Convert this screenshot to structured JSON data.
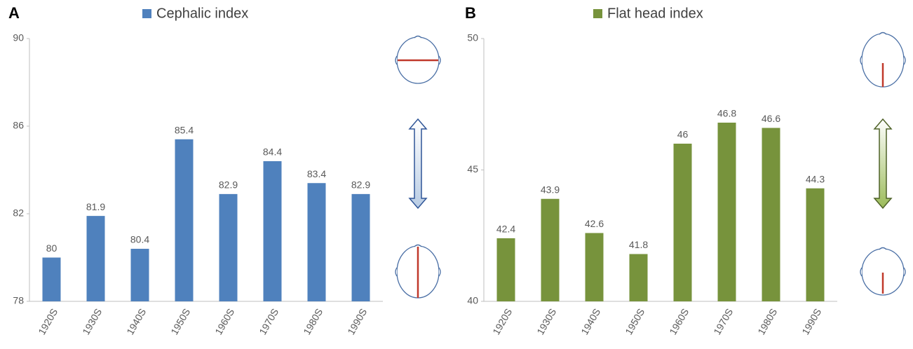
{
  "chart_data": [
    {
      "type": "bar",
      "panel_label": "A",
      "categories": [
        "1920S",
        "1930S",
        "1940S",
        "1950S",
        "1960S",
        "1970S",
        "1980S",
        "1990S"
      ],
      "series": [
        {
          "name": "Cephalic index",
          "color": "#4f81bd",
          "values": [
            80,
            81.9,
            80.4,
            85.4,
            82.9,
            84.4,
            83.4,
            82.9
          ]
        }
      ],
      "ylim": [
        78,
        90
      ],
      "yticks": [
        78,
        82,
        86,
        90
      ],
      "grid": false
    },
    {
      "type": "bar",
      "panel_label": "B",
      "categories": [
        "1920S",
        "1930S",
        "1940S",
        "1950S",
        "1960S",
        "1970S",
        "1980S",
        "1990S"
      ],
      "series": [
        {
          "name": "Flat head index",
          "color": "#77933c",
          "values": [
            42.4,
            43.9,
            42.6,
            41.8,
            46,
            46.8,
            46.6,
            44.3
          ]
        }
      ],
      "ylim": [
        40,
        50
      ],
      "yticks": [
        40,
        45,
        50
      ],
      "grid": false
    }
  ]
}
